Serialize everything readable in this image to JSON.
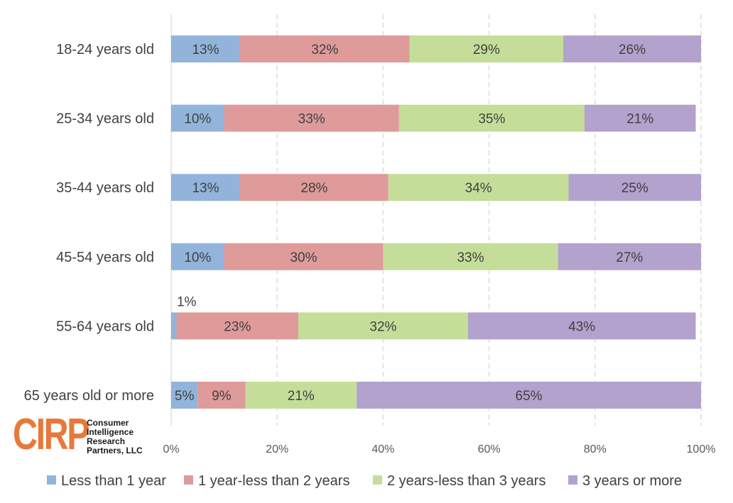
{
  "chart_data": {
    "type": "bar",
    "orientation": "horizontal",
    "stacked": true,
    "categories": [
      "18-24 years old",
      "25-34 years old",
      "35-44 years old",
      "45-54 years old",
      "55-64 years old",
      "65 years old or more"
    ],
    "series": [
      {
        "name": "Less than 1 year",
        "color": "#92b4db",
        "values": [
          13,
          10,
          13,
          10,
          1,
          5
        ]
      },
      {
        "name": "1 year-less than 2 years",
        "color": "#df9a9a",
        "values": [
          32,
          33,
          28,
          30,
          23,
          9
        ]
      },
      {
        "name": "2 years-less than 3 years",
        "color": "#c4de9a",
        "values": [
          29,
          35,
          34,
          33,
          32,
          21
        ]
      },
      {
        "name": "3 years or more",
        "color": "#b3a2cd",
        "values": [
          26,
          21,
          25,
          27,
          43,
          65
        ]
      }
    ],
    "value_suffix": "%",
    "xlim": [
      0,
      100
    ],
    "x_ticks": [
      "0%",
      "20%",
      "40%",
      "60%",
      "80%",
      "100%"
    ],
    "grid": "vertical dashed",
    "legend_position": "bottom"
  },
  "logo": {
    "mark": "CIRP",
    "company": "Consumer\nIntelligence\nResearch\nPartners, LLC"
  }
}
